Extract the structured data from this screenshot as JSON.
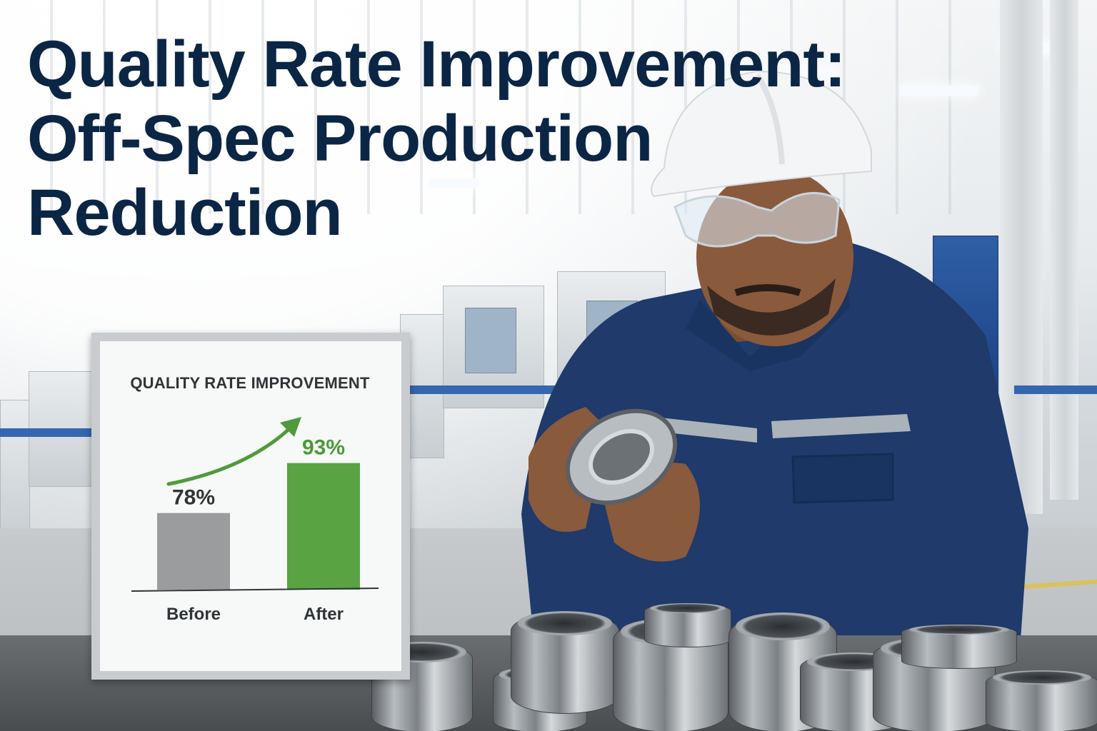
{
  "headline": {
    "line1": "Quality Rate Improvement:",
    "line2": "Off-Spec Production",
    "line3": "Reduction"
  },
  "colors": {
    "headline": "#0b2545",
    "before_bar": "#9a9c9e",
    "after_bar": "#5aa343",
    "arrow": "#4f9a3c",
    "board_frame": "#c9ccce"
  },
  "chart_data": {
    "type": "bar",
    "title": "QUALITY RATE IMPROVEMENT",
    "categories": [
      "Before",
      "After"
    ],
    "values": [
      78,
      93
    ],
    "value_labels": [
      "78%",
      "93%"
    ],
    "ylim": [
      55,
      100
    ],
    "grid": false,
    "legend": "none",
    "annotation": "upward arrow from Before to After"
  }
}
